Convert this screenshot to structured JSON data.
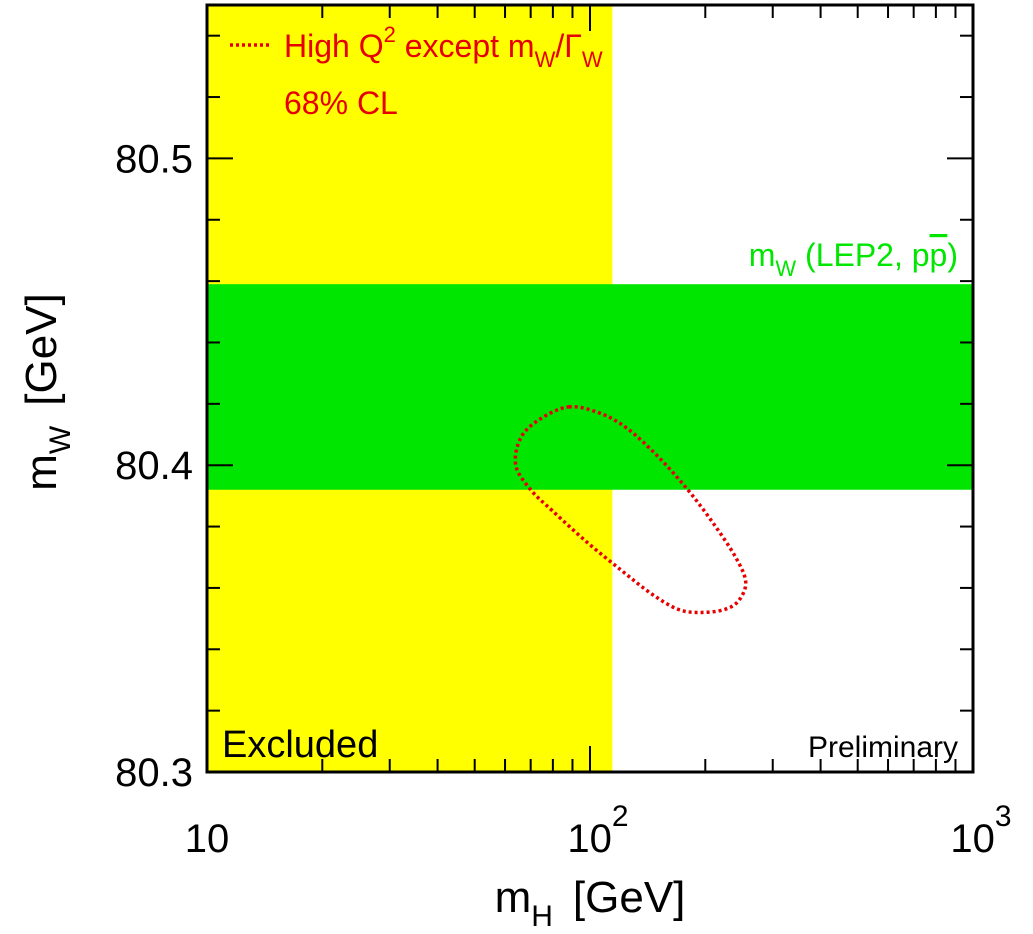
{
  "chart_data": {
    "type": "scatter",
    "title": "",
    "xlabel": {
      "main": "m",
      "sub": "H",
      "unit": "[GeV]"
    },
    "ylabel": {
      "main": "m",
      "sub": "W",
      "unit": "[GeV]"
    },
    "x_scale": "log",
    "xlim": [
      10,
      1000
    ],
    "ylim": [
      80.3,
      80.55
    ],
    "x_ticks": [
      {
        "value": 10,
        "base": "10",
        "exp": ""
      },
      {
        "value": 100,
        "base": "10",
        "exp": "2"
      },
      {
        "value": 1000,
        "base": "10",
        "exp": "3"
      }
    ],
    "y_ticks": [
      {
        "value": 80.3,
        "label": "80.3"
      },
      {
        "value": 80.4,
        "label": "80.4"
      },
      {
        "value": 80.5,
        "label": "80.5"
      }
    ],
    "grid": false,
    "excluded_region": {
      "x_min": 10,
      "x_max": 114.4,
      "color": "#ffff00",
      "label": "Excluded"
    },
    "mw_band": {
      "y_min": 80.392,
      "y_max": 80.459,
      "color": "#00e600",
      "label": {
        "main": "m",
        "sub": "W",
        "rest": " (LEP2, p",
        "bar": "p",
        "close": ")"
      }
    },
    "contour": {
      "color": "#e60000",
      "style": "dotted",
      "legend": {
        "prefix": "High Q",
        "sup": "2",
        "mid": " except m",
        "sub1": "W",
        "slash": "/Γ",
        "sub2": "W"
      },
      "cl_label": "68% CL",
      "points": [
        [
          88,
          80.419
        ],
        [
          106,
          80.417
        ],
        [
          125,
          80.412
        ],
        [
          150,
          80.403
        ],
        [
          180,
          80.392
        ],
        [
          210,
          80.381
        ],
        [
          240,
          80.37
        ],
        [
          255,
          80.362
        ],
        [
          245,
          80.356
        ],
        [
          225,
          80.353
        ],
        [
          195,
          80.352
        ],
        [
          170,
          80.353
        ],
        [
          145,
          80.358
        ],
        [
          120,
          80.366
        ],
        [
          98,
          80.375
        ],
        [
          80,
          80.385
        ],
        [
          70,
          80.392
        ],
        [
          64,
          80.4
        ],
        [
          66,
          80.409
        ],
        [
          74,
          80.415
        ],
        [
          88,
          80.419
        ]
      ]
    },
    "annotation": "Preliminary"
  },
  "colors": {
    "axis": "#000000",
    "legend_text": "#e60000",
    "band_text": "#00e600",
    "excluded_text": "#000000"
  }
}
